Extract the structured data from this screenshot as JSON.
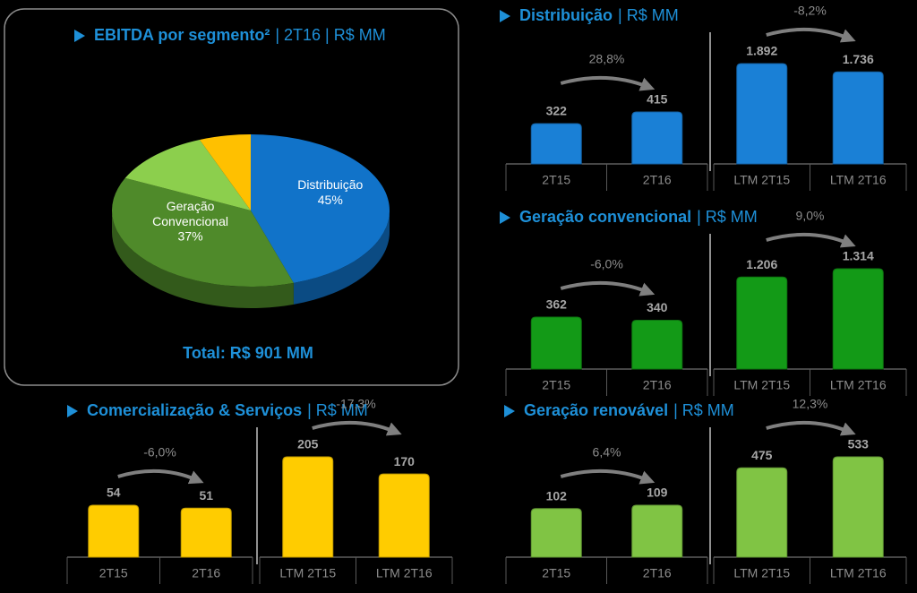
{
  "chart_data": [
    {
      "type": "pie",
      "title": "EBITDA por segmento²",
      "subtitle": "| 2T16 | R$ MM",
      "categories": [
        "Distribuição",
        "Geração Convencional",
        null,
        null
      ],
      "values": [
        45,
        37,
        12,
        6
      ],
      "value_labels": [
        "45%",
        "37%",
        null,
        null
      ],
      "colors": [
        "#1173c9",
        "#4f8a2a",
        "#8ccf4d",
        "#ffc000"
      ],
      "annotation": "Total: R$ 901 MM"
    },
    {
      "type": "bar",
      "title": "Distribuição",
      "subtitle": "| R$ MM",
      "color": "#1a80d6",
      "panels": [
        {
          "categories": [
            "2T15",
            "2T16"
          ],
          "values": [
            322,
            415
          ],
          "annotation": "28,8%"
        },
        {
          "categories": [
            "LTM 2T15",
            "LTM 2T16"
          ],
          "values": [
            1892,
            1736
          ],
          "value_labels": [
            "1.892",
            "1.736"
          ],
          "annotation": "-8,2%"
        }
      ]
    },
    {
      "type": "bar",
      "title": "Geração convencional",
      "subtitle": "| R$ MM",
      "color": "#139a17",
      "panels": [
        {
          "categories": [
            "2T15",
            "2T16"
          ],
          "values": [
            362,
            340
          ],
          "annotation": "-6,0%"
        },
        {
          "categories": [
            "LTM 2T15",
            "LTM 2T16"
          ],
          "values": [
            1206,
            1314
          ],
          "value_labels": [
            "1.206",
            "1.314"
          ],
          "annotation": "9,0%"
        }
      ]
    },
    {
      "type": "bar",
      "title": "Geração renovável",
      "subtitle": "| R$ MM",
      "color": "#80c444",
      "panels": [
        {
          "categories": [
            "2T15",
            "2T16"
          ],
          "values": [
            102,
            109
          ],
          "annotation": "6,4%"
        },
        {
          "categories": [
            "LTM 2T15",
            "LTM 2T16"
          ],
          "values": [
            475,
            533
          ],
          "annotation": "12,3%"
        }
      ]
    },
    {
      "type": "bar",
      "title": "Comercialização & Serviços",
      "subtitle": "| R$ MM",
      "color": "#ffcc00",
      "panels": [
        {
          "categories": [
            "2T15",
            "2T16"
          ],
          "values": [
            54,
            51
          ],
          "annotation": "-6,0%"
        },
        {
          "categories": [
            "LTM 2T15",
            "LTM 2T16"
          ],
          "values": [
            205,
            170
          ],
          "annotation": "-17,3%"
        }
      ]
    }
  ]
}
